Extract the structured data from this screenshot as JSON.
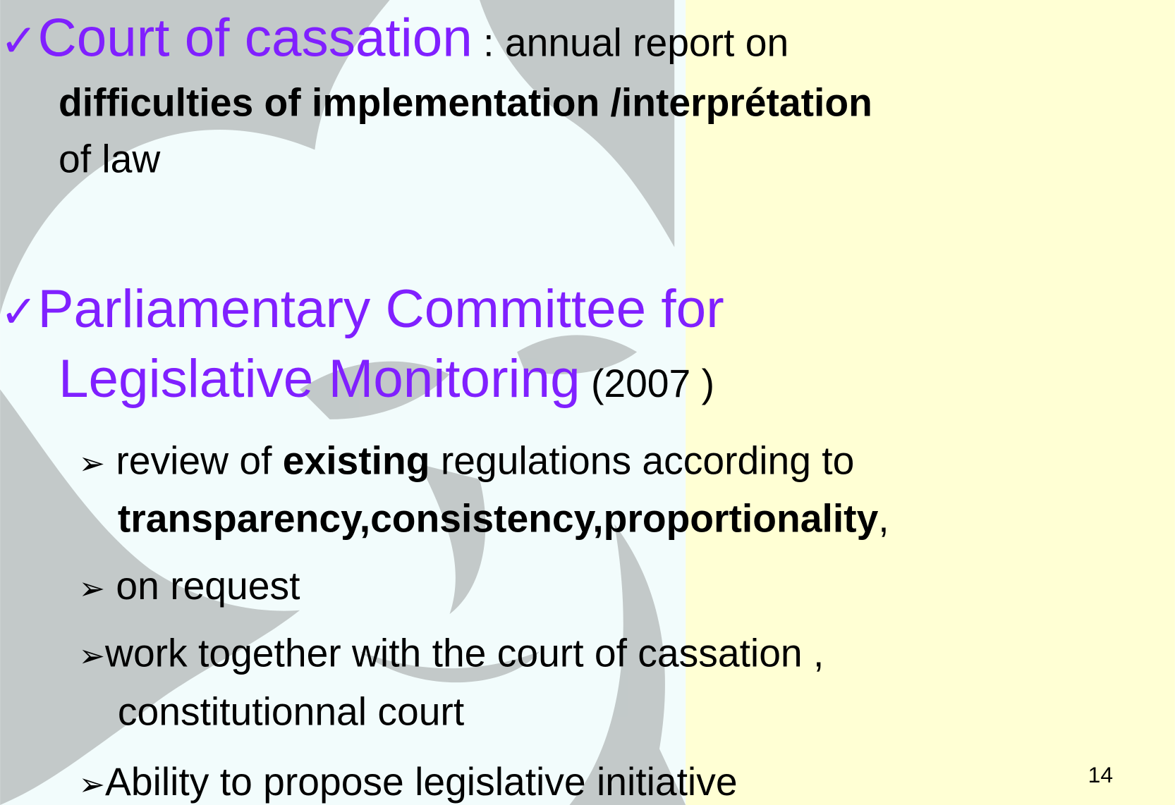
{
  "slide": {
    "lines": [
      {
        "runs": [
          {
            "text": "✓",
            "style": "bullet-check"
          },
          {
            "text": "Court of cassation",
            "style": "heading"
          },
          {
            "text": " : annual report on",
            "style": "normal"
          }
        ]
      },
      {
        "runs": [
          {
            "text": "difficulties of implementation /interprétation",
            "style": "bold"
          }
        ]
      },
      {
        "runs": [
          {
            "text": "of law",
            "style": "normal"
          }
        ]
      },
      {
        "runs": [
          {
            "text": "✓",
            "style": "bullet-check"
          },
          {
            "text": "Parliamentary Committee for",
            "style": "heading"
          }
        ]
      },
      {
        "runs": [
          {
            "text": "Legislative Monitoring",
            "style": "heading"
          },
          {
            "text": " (2007 )",
            "style": "normal"
          }
        ]
      },
      {
        "runs": [
          {
            "text": "➢",
            "style": "bullet-arrow"
          },
          {
            "text": " review of ",
            "style": "normal"
          },
          {
            "text": "existing",
            "style": "bold"
          },
          {
            "text": " regulations according to",
            "style": "normal"
          }
        ]
      },
      {
        "runs": [
          {
            "text": "transparency,consistency,proportionality",
            "style": "bold"
          },
          {
            "text": ",",
            "style": "normal"
          }
        ]
      },
      {
        "runs": [
          {
            "text": "➢",
            "style": "bullet-arrow"
          },
          {
            "text": " on request",
            "style": "normal"
          }
        ]
      },
      {
        "runs": [
          {
            "text": "➢",
            "style": "bullet-arrow"
          },
          {
            "text": "work together with the court of cassation ,",
            "style": "normal"
          }
        ]
      },
      {
        "runs": [
          {
            "text": "constitutionnal court",
            "style": "normal"
          }
        ]
      },
      {
        "runs": [
          {
            "text": "➢",
            "style": "bullet-arrow"
          },
          {
            "text": "Ability to propose legislative initiative",
            "style": "normal"
          }
        ]
      }
    ],
    "page_number": "14"
  }
}
